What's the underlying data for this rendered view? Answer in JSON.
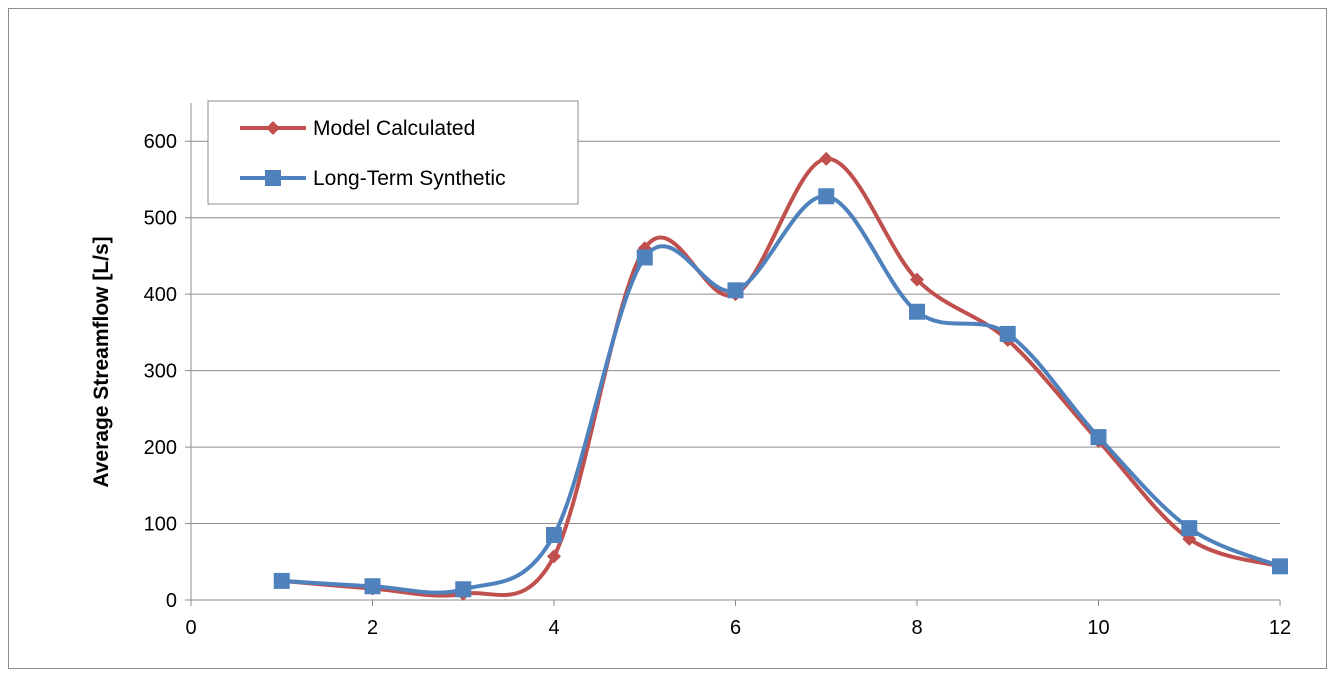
{
  "chart_data": {
    "type": "line",
    "title": "",
    "xlabel": "",
    "ylabel": "Average Streamflow [L/s]",
    "xlim": [
      0,
      12
    ],
    "ylim": [
      0,
      650
    ],
    "x_ticks": [
      0,
      2,
      4,
      6,
      8,
      10,
      12
    ],
    "y_ticks": [
      0,
      100,
      200,
      300,
      400,
      500,
      600
    ],
    "x_tick_labels": [
      "0",
      "2",
      "4",
      "6",
      "8",
      "10",
      "12"
    ],
    "y_tick_labels": [
      "0",
      "100",
      "200",
      "300",
      "400",
      "500",
      "600"
    ],
    "grid": "horizontal",
    "smoothed": true,
    "legend_position": "top-left",
    "series": [
      {
        "name": "Model Calculated",
        "color": "#c0504d",
        "marker": "diamond",
        "x": [
          1,
          2,
          3,
          4,
          5,
          6,
          7,
          8,
          9,
          10,
          11,
          12
        ],
        "y": [
          25,
          15,
          8,
          57,
          460,
          400,
          577,
          419,
          340,
          208,
          80,
          44
        ]
      },
      {
        "name": "Long-Term Synthetic",
        "color": "#4f81bd",
        "marker": "square",
        "x": [
          1,
          2,
          3,
          4,
          5,
          6,
          7,
          8,
          9,
          10,
          11,
          12
        ],
        "y": [
          25,
          18,
          14,
          85,
          448,
          405,
          528,
          377,
          348,
          213,
          94,
          44
        ]
      }
    ]
  }
}
